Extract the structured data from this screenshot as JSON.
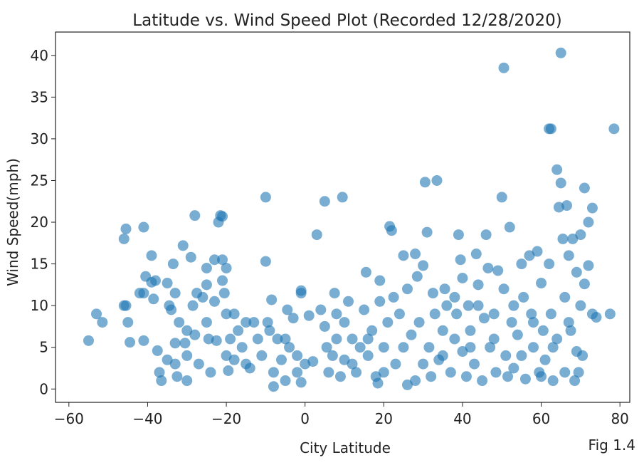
{
  "chart_data": {
    "type": "scatter",
    "title": "Latitude vs. Wind Speed Plot (Recorded 12/28/2020)",
    "x_label": "City Latitude",
    "y_label": "Wind Speed(mph)",
    "annotation": "Fig 1.4",
    "color": "#1f77b4",
    "xlim": [
      -63.4,
      82.5
    ],
    "ylim": [
      -1.6,
      42.8
    ],
    "xticks": [
      {
        "value": -60,
        "label": "−60"
      },
      {
        "value": -40,
        "label": "−40"
      },
      {
        "value": -20,
        "label": "−20"
      },
      0,
      20,
      40,
      60,
      80
    ],
    "yticks": [
      0,
      5,
      10,
      15,
      20,
      25,
      30,
      35,
      40
    ],
    "x": [
      -55,
      -53,
      -51.5,
      -46,
      -45.5,
      -46,
      -45.5,
      -45,
      -44.5,
      -42,
      -41,
      -41,
      -40.5,
      -41,
      -39,
      -39,
      -38.5,
      -38,
      -37.5,
      -37,
      -36.5,
      -35,
      -34.5,
      -34,
      -33.5,
      -33,
      -33,
      -33,
      -32.5,
      -32,
      -31,
      -30.5,
      -30,
      -30,
      -29,
      -28.5,
      -28,
      -28,
      -27.5,
      -27,
      -26,
      -25,
      -25,
      -24.5,
      -24,
      -23,
      -23,
      -22.5,
      -22,
      -21.5,
      -21,
      -21,
      -21,
      -20.5,
      -20,
      -20,
      -20,
      -19.5,
      -19,
      -18,
      -17,
      -16,
      -15,
      -14,
      -13,
      -12,
      -11,
      -10,
      -10,
      -9.5,
      -9,
      -8.5,
      -8,
      -8,
      -7,
      -6,
      -5,
      -4.5,
      -4,
      -3,
      -2,
      -1,
      -1,
      -1,
      0,
      1,
      2,
      3,
      4,
      5,
      5,
      5.5,
      6,
      7,
      7.5,
      8,
      9,
      9.5,
      10,
      10,
      11,
      12,
      13,
      14,
      15,
      15.5,
      16,
      17,
      18,
      18.5,
      19,
      19,
      20,
      21,
      21.5,
      22,
      22.5,
      23,
      24,
      25,
      26,
      26,
      27,
      28,
      28.5,
      29,
      30,
      30.5,
      31,
      31.5,
      32,
      32.5,
      33,
      33.5,
      34,
      35,
      35.5,
      36,
      37,
      38,
      38.5,
      39,
      39.5,
      40,
      40,
      41,
      41.5,
      42,
      43,
      43.5,
      44,
      45,
      45.5,
      46,
      46.5,
      47,
      48,
      48.5,
      49,
      50,
      50.5,
      50.5,
      51,
      51.5,
      52,
      52.5,
      53,
      54,
      55,
      55.5,
      56,
      57,
      57.5,
      58,
      59,
      59.5,
      60,
      60.5,
      61,
      62,
      62.5,
      62,
      62.5,
      63,
      63,
      64,
      64.5,
      65,
      65,
      65.5,
      66,
      66,
      66.5,
      67,
      67.5,
      68,
      68.5,
      69,
      69,
      69.5,
      70,
      70,
      70.5,
      71,
      71,
      72,
      72,
      73,
      73,
      74,
      77.5,
      78.5,
      -15,
      -5,
      12,
      25,
      35,
      42,
      48,
      55,
      60,
      58,
      44,
      30,
      20,
      8,
      -2,
      -25,
      -30,
      -35,
      -18,
      64,
      67,
      53,
      38,
      28,
      16
    ],
    "values": [
      5.8,
      9,
      8,
      18,
      19.2,
      10,
      10,
      8,
      5.6,
      11.5,
      11.5,
      19.4,
      13.5,
      5.8,
      16,
      12.8,
      10.8,
      13,
      4.6,
      2,
      1,
      12.7,
      10,
      9.5,
      15,
      11.5,
      5.5,
      3,
      1.5,
      8,
      17.2,
      5.5,
      4,
      1,
      15.8,
      10,
      20.8,
      6.5,
      11.5,
      3,
      11,
      14.5,
      12.5,
      6,
      2,
      10.5,
      15.5,
      5.8,
      20,
      20.8,
      20.7,
      15.5,
      13,
      11.5,
      14.5,
      9,
      4,
      2.2,
      6,
      9,
      7,
      5,
      3,
      2.5,
      8,
      6,
      4,
      23,
      15.3,
      8,
      7,
      10.7,
      2,
      0.3,
      6,
      3.5,
      1,
      9.5,
      5,
      8.5,
      2,
      11.8,
      11.5,
      0.8,
      3,
      8.8,
      3.3,
      18.5,
      9.5,
      22.5,
      7.5,
      5,
      2,
      4,
      11.5,
      6,
      1.5,
      23,
      8,
      3.5,
      10.5,
      6,
      2,
      5,
      9.5,
      14,
      4,
      7,
      1.5,
      0.7,
      13,
      10.5,
      5,
      8,
      19.5,
      19,
      11,
      3,
      9,
      16,
      0.5,
      12,
      6.5,
      16.2,
      13.5,
      8,
      14.8,
      24.8,
      18.8,
      5,
      1.5,
      11.5,
      9,
      25,
      3.5,
      7,
      12,
      10,
      2,
      6,
      9,
      18.5,
      15.5,
      13.3,
      4.5,
      1.5,
      10,
      7,
      3,
      16.2,
      12.5,
      1,
      8.5,
      18.5,
      14.5,
      5,
      9,
      2,
      14.2,
      23,
      38.5,
      12,
      4,
      1.5,
      19.4,
      8,
      2.5,
      6.5,
      15,
      11,
      1.2,
      16,
      9,
      5,
      16.5,
      2,
      12.7,
      7,
      3.5,
      31.2,
      31.2,
      15,
      9,
      5,
      1,
      26.3,
      21.8,
      24.7,
      40.3,
      18,
      11,
      2,
      22,
      16,
      7,
      18,
      1,
      14,
      4.5,
      2,
      18.5,
      10,
      4,
      24.1,
      12.6,
      20,
      14.8,
      21.7,
      9,
      8.6,
      9,
      31.2,
      8,
      6,
      3,
      5,
      4,
      5,
      6,
      4,
      1.5,
      8,
      10,
      3,
      2,
      9,
      4,
      8,
      7,
      3.5,
      3.5,
      6,
      8,
      10,
      11,
      1,
      6
    ]
  }
}
